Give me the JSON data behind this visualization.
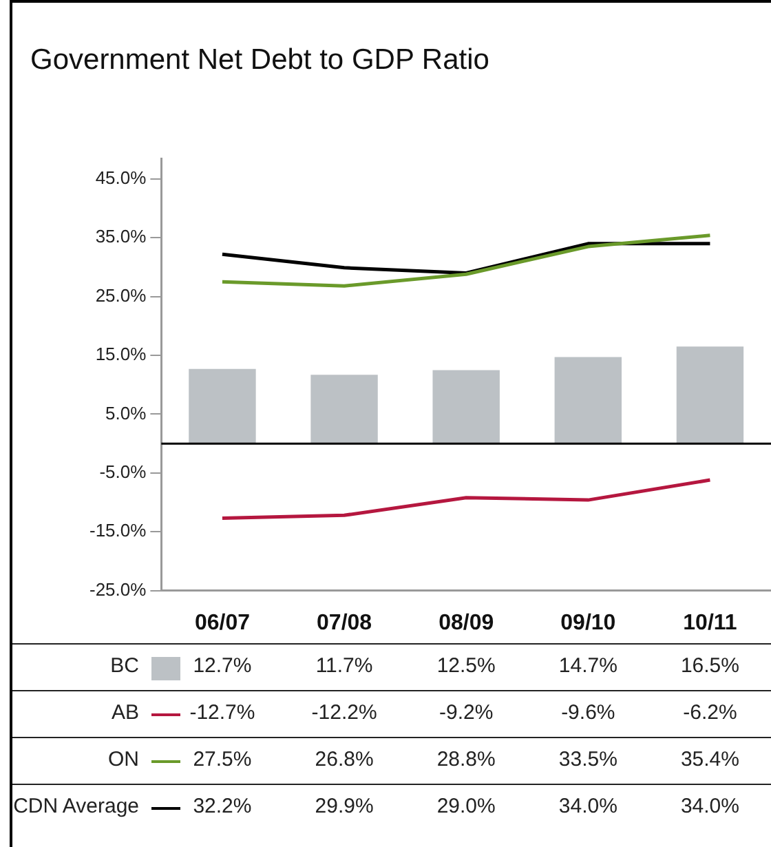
{
  "chart_data": {
    "type": "bar",
    "title": "Government Net Debt to GDP Ratio",
    "categories": [
      "06/07",
      "07/08",
      "08/09",
      "09/10",
      "10/11"
    ],
    "series": [
      {
        "name": "BC",
        "color": "#bcc1c5",
        "values": [
          12.7,
          11.7,
          12.5,
          14.7,
          16.5
        ],
        "value_labels": [
          "12.7%",
          "11.7%",
          "12.5%",
          "14.7%",
          "16.5%"
        ]
      },
      {
        "name": "AB",
        "type": "line",
        "color": "#b5173f",
        "values": [
          -12.7,
          -12.2,
          -9.2,
          -9.6,
          -6.2
        ],
        "value_labels": [
          "-12.7%",
          "-12.2%",
          "-9.2%",
          "-9.6%",
          "-6.2%"
        ]
      },
      {
        "name": "ON",
        "type": "line",
        "color": "#6a9a2a",
        "values": [
          27.5,
          26.8,
          28.8,
          33.5,
          35.4
        ],
        "value_labels": [
          "27.5%",
          "26.8%",
          "28.8%",
          "33.5%",
          "35.4%"
        ]
      },
      {
        "name": "CDN Average",
        "type": "line",
        "color": "#000000",
        "values": [
          32.2,
          29.9,
          29.0,
          34.0,
          34.0
        ],
        "value_labels": [
          "32.2%",
          "29.9%",
          "29.0%",
          "34.0%",
          "34.0%"
        ]
      }
    ],
    "ylim": [
      -25,
      48.5
    ],
    "yticks": [
      {
        "value": -25,
        "label": "-25.0%"
      },
      {
        "value": -15,
        "label": "-15.0%"
      },
      {
        "value": -5,
        "label": "-5.0%"
      },
      {
        "value": 5,
        "label": "5.0%"
      },
      {
        "value": 15,
        "label": "15.0%"
      },
      {
        "value": 25,
        "label": "25.0%"
      },
      {
        "value": 35,
        "label": "35.0%"
      },
      {
        "value": 45,
        "label": "45.0%"
      }
    ],
    "ref_lines": [
      {
        "axis": "y",
        "value": 0,
        "color": "#000000"
      }
    ],
    "grid": false,
    "legend": "bottom",
    "marker": "none",
    "line_style": "solid"
  }
}
